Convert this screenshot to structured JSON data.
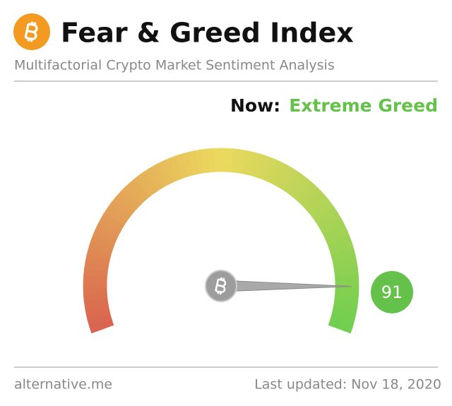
{
  "chart_data": {
    "type": "gauge",
    "title": "Fear & Greed Index",
    "subtitle": "Multifactorial Crypto Market Sentiment Analysis",
    "now_label": "Now:",
    "classification": "Extreme Greed",
    "value": 91,
    "ylim": [
      0,
      100
    ],
    "color": "#64c14a",
    "source": "alternative.me",
    "updated": "Last updated: Nov 18, 2020"
  }
}
